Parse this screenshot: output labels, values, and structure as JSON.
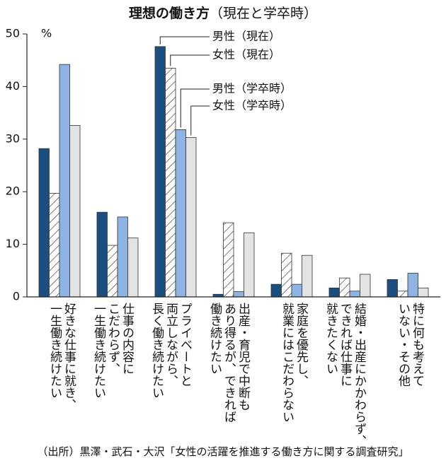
{
  "chart_data": {
    "type": "bar",
    "title": "理想の働き方",
    "subtitle": "（現在と学卒時）",
    "y_unit": "%",
    "source": "（出所）黒澤・武石・大沢「女性の活躍を推進する働き方に関する調査研究」",
    "categories": [
      "好きな仕事に就き、\n一生働き続けたい",
      "仕事の内容に\nこだわらず、\n一生働き続けたい",
      "プライベートと\n両立しながら、\n長く働き続けたい",
      "出産・育児で中断も\nあり得るが、できれば\n働き続けたい",
      "家庭を優先し、\n就業にはこだわらない",
      "結婚・出産にかかわらず、\nできれば仕事に\n就きたくない",
      "特に何も考えて\nいない・その他"
    ],
    "series": [
      {
        "name": "男性（現在）",
        "color": "#1a4f80",
        "values": [
          28.2,
          16.1,
          47.6,
          0.5,
          2.4,
          1.7,
          3.3
        ]
      },
      {
        "name": "女性（現在）",
        "color": "#ffffff",
        "hatch": true,
        "values": [
          19.7,
          9.8,
          43.5,
          14.1,
          8.3,
          3.6,
          1.1
        ]
      },
      {
        "name": "男性（学卒時）",
        "color": "#8db4e2",
        "values": [
          44.2,
          15.2,
          31.8,
          1.0,
          2.4,
          1.1,
          4.5
        ]
      },
      {
        "name": "女性（学卒時）",
        "color": "#e3e3e3",
        "values": [
          32.6,
          11.2,
          30.3,
          12.2,
          7.9,
          4.3,
          1.7
        ]
      }
    ],
    "ylim": [
      0,
      50
    ],
    "yticks": [
      0,
      10,
      20,
      30,
      40,
      50
    ]
  }
}
